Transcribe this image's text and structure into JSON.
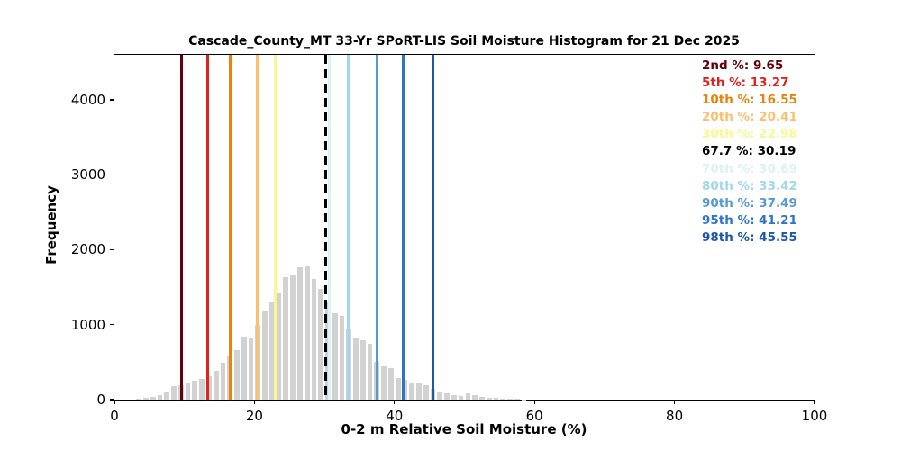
{
  "figure": {
    "title": "Cascade_County_MT 33-Yr SPoRT-LIS Soil Moisture Histogram for 21 Dec 2025",
    "xlabel": "0-2 m Relative Soil Moisture (%)",
    "ylabel": "Frequency"
  },
  "chart_data": {
    "type": "bar",
    "subtype": "histogram",
    "title": "Cascade_County_MT 33-Yr SPoRT-LIS Soil Moisture Histogram for 21 Dec 2025",
    "xlabel": "0-2 m Relative Soil Moisture (%)",
    "ylabel": "Frequency",
    "xlim": [
      0,
      100
    ],
    "ylim": [
      0,
      4600
    ],
    "x_ticks": [
      0,
      20,
      40,
      60,
      80,
      100
    ],
    "y_ticks": [
      0,
      1000,
      2000,
      3000,
      4000
    ],
    "grid": false,
    "bar_color": "#d2d2d2",
    "bin_width": 1,
    "bin_start": 3,
    "bins_x": [
      3,
      4,
      5,
      6,
      7,
      8,
      9,
      10,
      11,
      12,
      13,
      14,
      15,
      16,
      17,
      18,
      19,
      20,
      21,
      22,
      23,
      24,
      25,
      26,
      27,
      28,
      29,
      30,
      31,
      32,
      33,
      34,
      35,
      36,
      37,
      38,
      39,
      40,
      41,
      42,
      43,
      44,
      45,
      46,
      47,
      48,
      49,
      50,
      51,
      52,
      53,
      54,
      55,
      56,
      57,
      58
    ],
    "values": [
      15,
      20,
      35,
      65,
      105,
      180,
      195,
      225,
      250,
      275,
      315,
      385,
      490,
      580,
      655,
      840,
      830,
      1000,
      1175,
      1315,
      1415,
      1635,
      1670,
      1765,
      1790,
      1615,
      1475,
      1295,
      1155,
      1115,
      935,
      830,
      790,
      750,
      500,
      450,
      425,
      290,
      265,
      215,
      230,
      195,
      145,
      110,
      90,
      60,
      50,
      80,
      55,
      40,
      30,
      20,
      15,
      12,
      10,
      6
    ],
    "legend_position": "upper right",
    "percentile_lines": [
      {
        "label": "2nd %: 9.65",
        "value": 9.65,
        "color": "#650009",
        "style": "solid",
        "bold": false
      },
      {
        "label": "5th %: 13.27",
        "value": 13.27,
        "color": "#e2201c",
        "style": "solid",
        "bold": false
      },
      {
        "label": "10th %: 16.55",
        "value": 16.55,
        "color": "#e8830f",
        "style": "solid",
        "bold": false
      },
      {
        "label": "20th %: 20.41",
        "value": 20.41,
        "color": "#fcbf6f",
        "style": "solid",
        "bold": false
      },
      {
        "label": "30th %: 22.98",
        "value": 22.98,
        "color": "#faf791",
        "style": "solid",
        "bold": false
      },
      {
        "label": "67.7 %: 30.19",
        "value": 30.19,
        "color": "#000000",
        "style": "dashed",
        "bold": true
      },
      {
        "label": "70th %: 30.69",
        "value": 30.69,
        "color": "#daf3f0",
        "style": "solid",
        "bold": false
      },
      {
        "label": "80th %: 33.42",
        "value": 33.42,
        "color": "#a2d6ee",
        "style": "solid",
        "bold": false
      },
      {
        "label": "90th %: 37.49",
        "value": 37.49,
        "color": "#5799d4",
        "style": "solid",
        "bold": false
      },
      {
        "label": "95th %: 41.21",
        "value": 41.21,
        "color": "#2e74c9",
        "style": "solid",
        "bold": false
      },
      {
        "label": "98th %: 45.55",
        "value": 45.55,
        "color": "#1e57ab",
        "style": "solid",
        "bold": false
      }
    ]
  }
}
